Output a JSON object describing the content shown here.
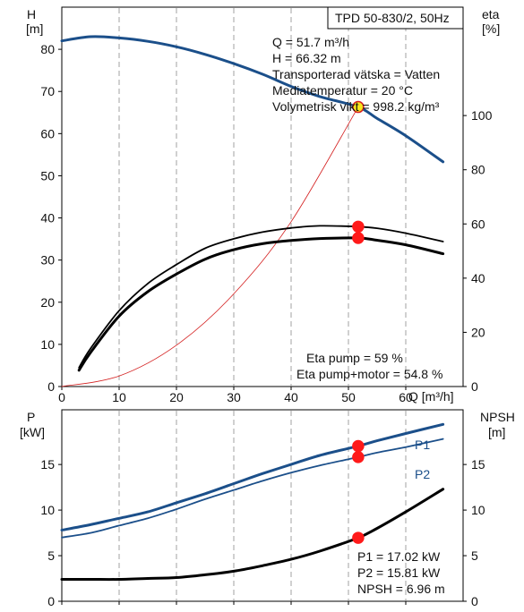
{
  "chart_data": [
    {
      "type": "line",
      "title": "TPD 50-830/2, 50Hz",
      "xlabel": "Q [m³/h]",
      "ylabel_left": "H",
      "ylabel_left_unit": "[m]",
      "ylabel_right": "eta",
      "ylabel_right_unit": "[%]",
      "xlim": [
        0,
        70
      ],
      "ylim_left": [
        0,
        90
      ],
      "ylim_right": [
        0,
        140
      ],
      "x_ticks": [
        0,
        10,
        20,
        30,
        40,
        50,
        60
      ],
      "y_left_ticks": [
        0,
        10,
        20,
        30,
        40,
        50,
        60,
        70,
        80
      ],
      "y_right_ticks": [
        0,
        20,
        40,
        60,
        80,
        100
      ],
      "grid": "vertical dashed",
      "info_box": [
        "Q = 51.7 m³/h",
        "H = 66.32 m",
        "Transporterad vätska = Vatten",
        "Mediatemperatur = 20 °C",
        "Volymetrisk vikt = 998.2 kg/m³"
      ],
      "annotations": [
        "Eta pump = 59 %",
        "Eta pump+motor = 54.8 %"
      ],
      "series": [
        {
          "color": "#1b4f8a",
          "axis": "left",
          "x": [
            0,
            5,
            10,
            15,
            20,
            25,
            30,
            35,
            40,
            45,
            51.7,
            55,
            60,
            66.5
          ],
          "values": [
            82,
            83,
            82.7,
            81.9,
            80.6,
            78.8,
            76.6,
            74.1,
            71.2,
            68.8,
            66.32,
            63.6,
            59.5,
            53.3
          ]
        },
        {
          "color": "#d42020",
          "axis": "left",
          "x": [
            0,
            10,
            20,
            30,
            40,
            51.7
          ],
          "values": [
            0,
            2.5,
            9.8,
            22,
            39.1,
            66.32
          ]
        },
        {
          "color": "#000000",
          "axis": "right",
          "x": [
            3,
            5,
            10,
            15,
            20,
            25,
            30,
            35,
            40,
            45,
            51.7,
            55,
            60,
            66.5
          ],
          "values": [
            7,
            14,
            28,
            38,
            45,
            51,
            54.5,
            57,
            58.5,
            59.3,
            59,
            58.4,
            56.6,
            53.5
          ]
        },
        {
          "color": "#000000",
          "axis": "right",
          "x": [
            3,
            5,
            10,
            15,
            20,
            25,
            30,
            35,
            40,
            45,
            51.7,
            55,
            60,
            66.5
          ],
          "values": [
            6,
            12.5,
            26,
            35,
            41.5,
            47,
            50.5,
            52.7,
            53.9,
            54.6,
            54.8,
            54,
            52.3,
            49
          ]
        }
      ],
      "operating_points": [
        {
          "x": 51.7,
          "y": 66.32,
          "axis": "left",
          "fill": "#f6e51c"
        },
        {
          "x": 51.7,
          "y": 59,
          "axis": "right",
          "fill": "#ff1a1a"
        },
        {
          "x": 51.7,
          "y": 54.8,
          "axis": "right",
          "fill": "#ff1a1a"
        }
      ]
    },
    {
      "type": "line",
      "xlabel": "",
      "ylabel_left": "P",
      "ylabel_left_unit": "[kW]",
      "ylabel_right": "NPSH",
      "ylabel_right_unit": "[m]",
      "xlim": [
        0,
        70
      ],
      "ylim_left": [
        0,
        21
      ],
      "ylim_right": [
        0,
        21
      ],
      "y_left_ticks": [
        0,
        5,
        10,
        15
      ],
      "y_right_ticks": [
        0,
        5,
        10,
        15
      ],
      "grid": "vertical dashed",
      "annotations": [
        "P1 = 17.02 kW",
        "P2 = 15.81 kW",
        "NPSH = 6.96 m"
      ],
      "series": [
        {
          "name": "P1",
          "color": "#1b4f8a",
          "axis": "left",
          "x": [
            0,
            5,
            10,
            15,
            20,
            25,
            30,
            35,
            40,
            45,
            51.7,
            55,
            60,
            66.5
          ],
          "values": [
            7.8,
            8.4,
            9.1,
            9.8,
            10.8,
            11.8,
            12.9,
            14,
            15,
            16,
            17.02,
            17.6,
            18.4,
            19.4
          ]
        },
        {
          "name": "P2",
          "color": "#1b4f8a",
          "axis": "left",
          "x": [
            0,
            5,
            10,
            15,
            20,
            25,
            30,
            35,
            40,
            45,
            51.7,
            55,
            60,
            66.5
          ],
          "values": [
            7,
            7.5,
            8.3,
            9.1,
            10.1,
            11.2,
            12.2,
            13.2,
            14.1,
            14.9,
            15.81,
            16.3,
            16.9,
            17.8
          ]
        },
        {
          "color": "#000000",
          "axis": "right",
          "x": [
            0,
            5,
            10,
            15,
            20,
            25,
            30,
            35,
            40,
            45,
            51.7,
            55,
            60,
            66.5
          ],
          "values": [
            2.4,
            2.4,
            2.4,
            2.5,
            2.6,
            2.9,
            3.3,
            3.9,
            4.6,
            5.5,
            6.96,
            8,
            9.8,
            12.3
          ]
        }
      ],
      "operating_points": [
        {
          "x": 51.7,
          "y": 17.02,
          "axis": "left",
          "fill": "#ff1a1a"
        },
        {
          "x": 51.7,
          "y": 15.81,
          "axis": "left",
          "fill": "#ff1a1a"
        },
        {
          "x": 51.7,
          "y": 6.96,
          "axis": "right",
          "fill": "#ff1a1a"
        }
      ]
    }
  ]
}
